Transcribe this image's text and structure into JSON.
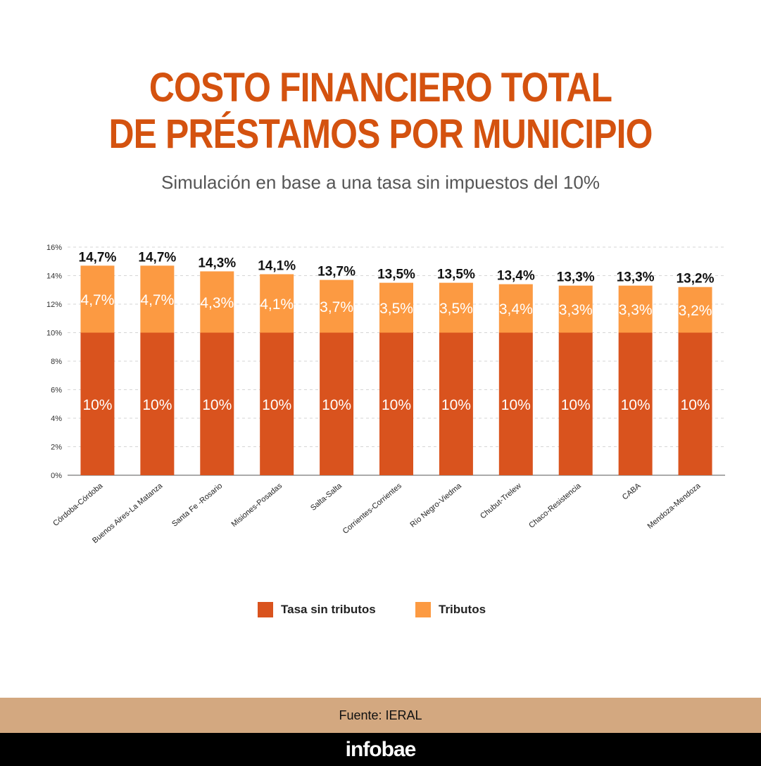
{
  "header": {
    "title_line1": "COSTO FINANCIERO TOTAL",
    "title_line2": "DE PRÉSTAMOS POR MUNICIPIO",
    "subtitle": "Simulación en base a una tasa sin impuestos del 10%"
  },
  "chart_data": {
    "type": "bar",
    "stacked": true,
    "categories": [
      "Córdoba-Córdoba",
      "Buenos Aires-La Matanza",
      "Santa Fe -Rosario",
      "Misiones-Posadas",
      "Salta-Salta",
      "Corrientes-Corrientes",
      "Río Negro-Viedma",
      "Chubut-Trelew",
      "Chaco-Resistencia",
      "CABA",
      "Mendoza-Mendoza"
    ],
    "series": [
      {
        "name": "Tasa sin tributos",
        "color": "#d9531e",
        "values": [
          10,
          10,
          10,
          10,
          10,
          10,
          10,
          10,
          10,
          10,
          10
        ],
        "labels": [
          "10%",
          "10%",
          "10%",
          "10%",
          "10%",
          "10%",
          "10%",
          "10%",
          "10%",
          "10%",
          "10%"
        ]
      },
      {
        "name": "Tributos",
        "color": "#fc9a42",
        "values": [
          4.7,
          4.7,
          4.3,
          4.1,
          3.7,
          3.5,
          3.5,
          3.4,
          3.3,
          3.3,
          3.2
        ],
        "labels": [
          "4,7%",
          "4,7%",
          "4,3%",
          "4,1%",
          "3,7%",
          "3,5%",
          "3,5%",
          "3,4%",
          "3,3%",
          "3,3%",
          "3,2%"
        ]
      }
    ],
    "totals": [
      14.7,
      14.7,
      14.3,
      14.1,
      13.7,
      13.5,
      13.5,
      13.4,
      13.3,
      13.3,
      13.2
    ],
    "total_labels": [
      "14,7%",
      "14,7%",
      "14,3%",
      "14,1%",
      "13,7%",
      "13,5%",
      "13,5%",
      "13,4%",
      "13,3%",
      "13,3%",
      "13,2%"
    ],
    "ylim": [
      0,
      16
    ],
    "yticks": [
      0,
      2,
      4,
      6,
      8,
      10,
      12,
      14,
      16
    ],
    "ytick_labels": [
      "0%",
      "2%",
      "4%",
      "6%",
      "8%",
      "10%",
      "12%",
      "14%",
      "16%"
    ],
    "grid": true,
    "legend_position": "bottom-center"
  },
  "footer": {
    "source": "Fuente: IERAL",
    "brand": "infobae"
  }
}
